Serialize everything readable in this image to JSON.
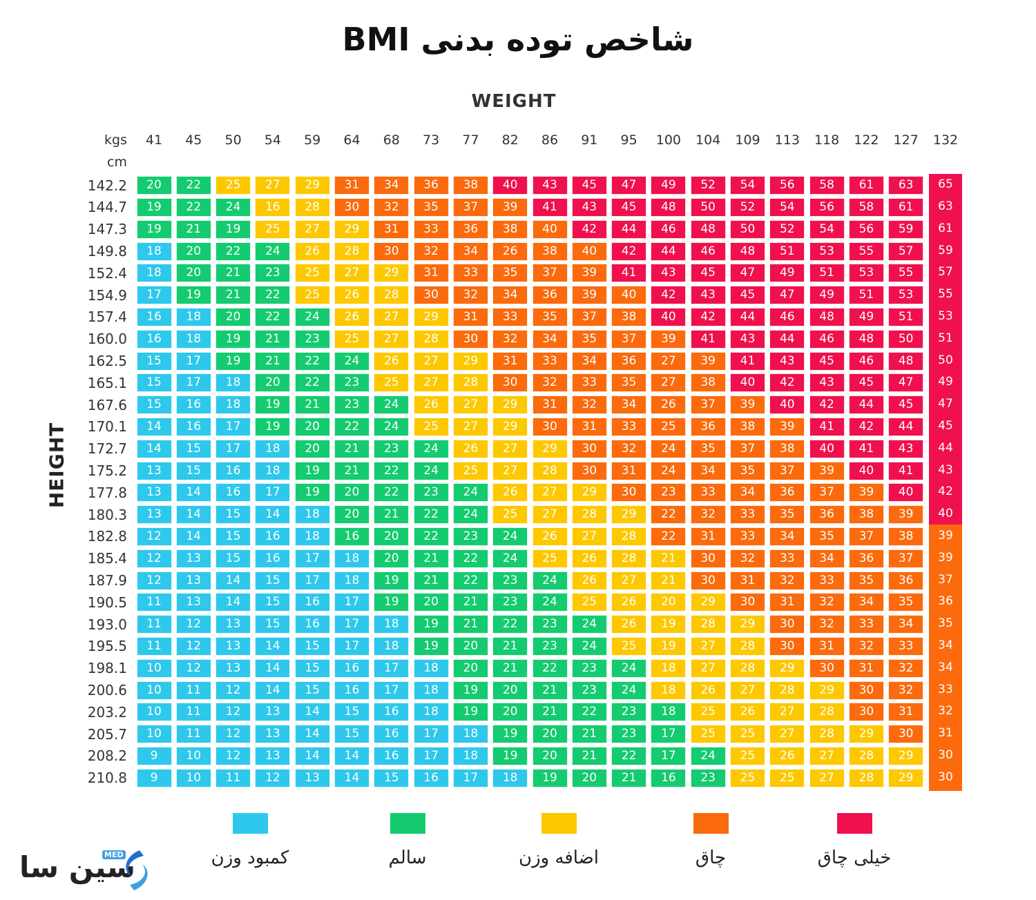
{
  "title": "شاخص توده بدنی BMI",
  "colors": {
    "underweight": "#2ec8ec",
    "healthy": "#14cb70",
    "overweight": "#fdc800",
    "obese": "#fb6a0c",
    "extremely_obese": "#f0104e"
  },
  "legend": [
    {
      "label": "کمبود وزن",
      "color": "#2ec8ec"
    },
    {
      "label": "سالم",
      "color": "#14cb70"
    },
    {
      "label": "اضافه وزن",
      "color": "#fdc800"
    },
    {
      "label": "چاق",
      "color": "#fb6a0c"
    },
    {
      "label": "خیلی چاق",
      "color": "#f0104e"
    }
  ],
  "logo": {
    "text": "سین سا",
    "badge": "MED"
  },
  "chart_data": {
    "type": "table",
    "title": "شاخص توده بدنی BMI",
    "x_axis_label": "WEIGHT",
    "y_axis_label": "HEIGHT",
    "x_unit": "kgs",
    "y_unit": "cm",
    "weights": [
      "41",
      "45",
      "50",
      "54",
      "59",
      "64",
      "68",
      "73",
      "77",
      "82",
      "86",
      "91",
      "95",
      "100",
      "104",
      "109",
      "113",
      "118",
      "122",
      "127",
      "132"
    ],
    "heights": [
      "142.2",
      "144.7",
      "147.3",
      "149.8",
      "152.4",
      "154.9",
      "157.4",
      "160.0",
      "162.5",
      "165.1",
      "167.6",
      "170.1",
      "172.7",
      "175.2",
      "177.8",
      "180.3",
      "182.8",
      "185.4",
      "187.9",
      "190.5",
      "193.0",
      "195.5",
      "198.1",
      "200.6",
      "203.2",
      "205.7",
      "208.2",
      "210.8"
    ],
    "values": [
      [
        20,
        22,
        25,
        27,
        29,
        31,
        34,
        36,
        38,
        40,
        43,
        45,
        47,
        49,
        52,
        54,
        56,
        58,
        61,
        63,
        65
      ],
      [
        19,
        22,
        24,
        16,
        28,
        30,
        32,
        35,
        37,
        39,
        41,
        43,
        45,
        48,
        50,
        52,
        54,
        56,
        58,
        61,
        63
      ],
      [
        19,
        21,
        19,
        25,
        27,
        29,
        31,
        33,
        36,
        38,
        40,
        42,
        44,
        46,
        48,
        50,
        52,
        54,
        56,
        59,
        61
      ],
      [
        18,
        20,
        22,
        24,
        26,
        28,
        30,
        32,
        34,
        26,
        38,
        40,
        42,
        44,
        46,
        48,
        51,
        53,
        55,
        57,
        59
      ],
      [
        18,
        20,
        21,
        23,
        25,
        27,
        29,
        31,
        33,
        35,
        37,
        39,
        41,
        43,
        45,
        47,
        49,
        51,
        53,
        55,
        57
      ],
      [
        17,
        19,
        21,
        22,
        25,
        26,
        28,
        30,
        32,
        34,
        36,
        39,
        40,
        42,
        43,
        45,
        47,
        49,
        51,
        53,
        55
      ],
      [
        16,
        18,
        20,
        22,
        24,
        26,
        27,
        29,
        31,
        33,
        35,
        37,
        38,
        40,
        42,
        44,
        46,
        48,
        49,
        51,
        53
      ],
      [
        16,
        18,
        19,
        21,
        23,
        25,
        27,
        28,
        30,
        32,
        34,
        35,
        37,
        39,
        41,
        43,
        44,
        46,
        48,
        50,
        51
      ],
      [
        15,
        17,
        19,
        21,
        22,
        24,
        26,
        27,
        29,
        31,
        33,
        34,
        36,
        27,
        39,
        41,
        43,
        45,
        46,
        48,
        50
      ],
      [
        15,
        17,
        18,
        20,
        22,
        23,
        25,
        27,
        28,
        30,
        32,
        33,
        35,
        27,
        38,
        40,
        42,
        43,
        45,
        47,
        49
      ],
      [
        15,
        16,
        18,
        19,
        21,
        23,
        24,
        26,
        27,
        29,
        31,
        32,
        34,
        26,
        37,
        39,
        40,
        42,
        44,
        45,
        47
      ],
      [
        14,
        16,
        17,
        19,
        20,
        22,
        24,
        25,
        27,
        29,
        30,
        31,
        33,
        25,
        36,
        38,
        39,
        41,
        42,
        44,
        45
      ],
      [
        14,
        15,
        17,
        18,
        20,
        21,
        23,
        24,
        26,
        27,
        29,
        30,
        32,
        24,
        35,
        37,
        38,
        40,
        41,
        43,
        44
      ],
      [
        13,
        15,
        16,
        18,
        19,
        21,
        22,
        24,
        25,
        27,
        28,
        30,
        31,
        24,
        34,
        35,
        37,
        39,
        40,
        41,
        43
      ],
      [
        13,
        14,
        16,
        17,
        19,
        20,
        22,
        23,
        24,
        26,
        27,
        29,
        30,
        23,
        33,
        34,
        36,
        37,
        39,
        40,
        42
      ],
      [
        13,
        14,
        15,
        14,
        18,
        20,
        21,
        22,
        24,
        25,
        27,
        28,
        29,
        22,
        32,
        33,
        35,
        36,
        38,
        39,
        40
      ],
      [
        12,
        14,
        15,
        16,
        18,
        16,
        20,
        22,
        23,
        24,
        26,
        27,
        28,
        22,
        31,
        33,
        34,
        35,
        37,
        38,
        39
      ],
      [
        12,
        13,
        15,
        16,
        17,
        18,
        20,
        21,
        22,
        24,
        25,
        26,
        28,
        21,
        30,
        32,
        33,
        34,
        36,
        37,
        39
      ],
      [
        12,
        13,
        14,
        15,
        17,
        18,
        19,
        21,
        22,
        23,
        24,
        26,
        27,
        21,
        30,
        31,
        32,
        33,
        35,
        36,
        37
      ],
      [
        11,
        13,
        14,
        15,
        16,
        17,
        19,
        20,
        21,
        23,
        24,
        25,
        26,
        20,
        29,
        30,
        31,
        32,
        34,
        35,
        36
      ],
      [
        11,
        12,
        13,
        15,
        16,
        17,
        18,
        19,
        21,
        22,
        23,
        24,
        26,
        19,
        28,
        29,
        30,
        32,
        33,
        34,
        35
      ],
      [
        11,
        12,
        13,
        14,
        15,
        17,
        18,
        19,
        20,
        21,
        23,
        24,
        25,
        19,
        27,
        28,
        30,
        31,
        32,
        33,
        34
      ],
      [
        10,
        12,
        13,
        14,
        15,
        16,
        17,
        18,
        20,
        21,
        22,
        23,
        24,
        18,
        27,
        28,
        29,
        30,
        31,
        32,
        34
      ],
      [
        10,
        11,
        12,
        14,
        15,
        16,
        17,
        18,
        19,
        20,
        21,
        23,
        24,
        18,
        26,
        27,
        28,
        29,
        30,
        32,
        33
      ],
      [
        10,
        11,
        12,
        13,
        14,
        15,
        16,
        18,
        19,
        20,
        21,
        22,
        23,
        18,
        25,
        26,
        27,
        28,
        30,
        31,
        32
      ],
      [
        10,
        11,
        12,
        13,
        14,
        15,
        16,
        17,
        18,
        19,
        20,
        21,
        23,
        17,
        25,
        25,
        27,
        28,
        29,
        30,
        31
      ],
      [
        9,
        10,
        12,
        13,
        14,
        14,
        16,
        17,
        18,
        19,
        20,
        21,
        22,
        17,
        24,
        25,
        26,
        27,
        28,
        29,
        30
      ],
      [
        9,
        10,
        11,
        12,
        13,
        14,
        15,
        16,
        17,
        18,
        19,
        20,
        21,
        16,
        23,
        25,
        25,
        27,
        28,
        29,
        30
      ]
    ],
    "categories_by_cell": [
      [
        1,
        1,
        2,
        2,
        2,
        3,
        3,
        3,
        3,
        4,
        4,
        4,
        4,
        4,
        4,
        4,
        4,
        4,
        4,
        4,
        4
      ],
      [
        1,
        1,
        1,
        2,
        2,
        3,
        3,
        3,
        3,
        3,
        4,
        4,
        4,
        4,
        4,
        4,
        4,
        4,
        4,
        4,
        4
      ],
      [
        1,
        1,
        1,
        2,
        2,
        2,
        3,
        3,
        3,
        3,
        3,
        4,
        4,
        4,
        4,
        4,
        4,
        4,
        4,
        4,
        4
      ],
      [
        0,
        1,
        1,
        1,
        2,
        2,
        3,
        3,
        3,
        3,
        3,
        3,
        4,
        4,
        4,
        4,
        4,
        4,
        4,
        4,
        4
      ],
      [
        0,
        1,
        1,
        1,
        2,
        2,
        2,
        3,
        3,
        3,
        3,
        3,
        4,
        4,
        4,
        4,
        4,
        4,
        4,
        4,
        4
      ],
      [
        0,
        1,
        1,
        1,
        2,
        2,
        2,
        3,
        3,
        3,
        3,
        3,
        3,
        4,
        4,
        4,
        4,
        4,
        4,
        4,
        4
      ],
      [
        0,
        0,
        1,
        1,
        1,
        2,
        2,
        2,
        3,
        3,
        3,
        3,
        3,
        4,
        4,
        4,
        4,
        4,
        4,
        4,
        4
      ],
      [
        0,
        0,
        1,
        1,
        1,
        2,
        2,
        2,
        3,
        3,
        3,
        3,
        3,
        3,
        4,
        4,
        4,
        4,
        4,
        4,
        4
      ],
      [
        0,
        0,
        1,
        1,
        1,
        1,
        2,
        2,
        2,
        3,
        3,
        3,
        3,
        3,
        3,
        4,
        4,
        4,
        4,
        4,
        4
      ],
      [
        0,
        0,
        0,
        1,
        1,
        1,
        2,
        2,
        2,
        3,
        3,
        3,
        3,
        3,
        3,
        4,
        4,
        4,
        4,
        4,
        4
      ],
      [
        0,
        0,
        0,
        1,
        1,
        1,
        1,
        2,
        2,
        2,
        3,
        3,
        3,
        3,
        3,
        3,
        4,
        4,
        4,
        4,
        4
      ],
      [
        0,
        0,
        0,
        1,
        1,
        1,
        1,
        2,
        2,
        2,
        3,
        3,
        3,
        3,
        3,
        3,
        3,
        4,
        4,
        4,
        4
      ],
      [
        0,
        0,
        0,
        0,
        1,
        1,
        1,
        1,
        2,
        2,
        2,
        3,
        3,
        3,
        3,
        3,
        3,
        4,
        4,
        4,
        4
      ],
      [
        0,
        0,
        0,
        0,
        1,
        1,
        1,
        1,
        2,
        2,
        2,
        3,
        3,
        3,
        3,
        3,
        3,
        3,
        4,
        4,
        4
      ],
      [
        0,
        0,
        0,
        0,
        1,
        1,
        1,
        1,
        1,
        2,
        2,
        2,
        3,
        3,
        3,
        3,
        3,
        3,
        3,
        4,
        4
      ],
      [
        0,
        0,
        0,
        0,
        0,
        1,
        1,
        1,
        1,
        2,
        2,
        2,
        2,
        3,
        3,
        3,
        3,
        3,
        3,
        3,
        4
      ],
      [
        0,
        0,
        0,
        0,
        0,
        1,
        1,
        1,
        1,
        1,
        2,
        2,
        2,
        3,
        3,
        3,
        3,
        3,
        3,
        3,
        3
      ],
      [
        0,
        0,
        0,
        0,
        0,
        0,
        1,
        1,
        1,
        1,
        2,
        2,
        2,
        2,
        3,
        3,
        3,
        3,
        3,
        3,
        3
      ],
      [
        0,
        0,
        0,
        0,
        0,
        0,
        1,
        1,
        1,
        1,
        1,
        2,
        2,
        2,
        3,
        3,
        3,
        3,
        3,
        3,
        3
      ],
      [
        0,
        0,
        0,
        0,
        0,
        0,
        1,
        1,
        1,
        1,
        1,
        2,
        2,
        2,
        2,
        3,
        3,
        3,
        3,
        3,
        3
      ],
      [
        0,
        0,
        0,
        0,
        0,
        0,
        0,
        1,
        1,
        1,
        1,
        1,
        2,
        2,
        2,
        2,
        3,
        3,
        3,
        3,
        3
      ],
      [
        0,
        0,
        0,
        0,
        0,
        0,
        0,
        1,
        1,
        1,
        1,
        1,
        2,
        2,
        2,
        2,
        3,
        3,
        3,
        3,
        3
      ],
      [
        0,
        0,
        0,
        0,
        0,
        0,
        0,
        0,
        1,
        1,
        1,
        1,
        1,
        2,
        2,
        2,
        2,
        3,
        3,
        3,
        3
      ],
      [
        0,
        0,
        0,
        0,
        0,
        0,
        0,
        0,
        1,
        1,
        1,
        1,
        1,
        2,
        2,
        2,
        2,
        2,
        3,
        3,
        3
      ],
      [
        0,
        0,
        0,
        0,
        0,
        0,
        0,
        0,
        1,
        1,
        1,
        1,
        1,
        1,
        2,
        2,
        2,
        2,
        3,
        3,
        3
      ],
      [
        0,
        0,
        0,
        0,
        0,
        0,
        0,
        0,
        0,
        1,
        1,
        1,
        1,
        1,
        2,
        2,
        2,
        2,
        2,
        3,
        3
      ],
      [
        0,
        0,
        0,
        0,
        0,
        0,
        0,
        0,
        0,
        1,
        1,
        1,
        1,
        1,
        1,
        2,
        2,
        2,
        2,
        2,
        3
      ],
      [
        0,
        0,
        0,
        0,
        0,
        0,
        0,
        0,
        0,
        0,
        1,
        1,
        1,
        1,
        1,
        2,
        2,
        2,
        2,
        2,
        3
      ]
    ]
  }
}
